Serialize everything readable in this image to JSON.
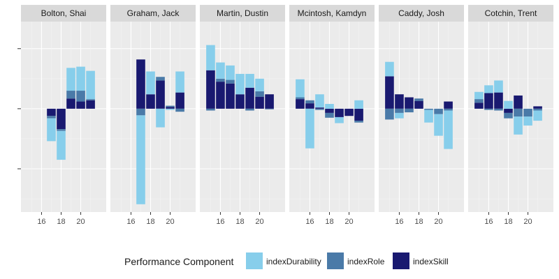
{
  "chart_data": {
    "type": "bar",
    "stacked": true,
    "facet_titles": [
      "Bolton, Shai",
      "Graham, Jack",
      "Martin, Dustin",
      "Mcintosh, Kamdyn",
      "Caddy, Josh",
      "Cotchin, Trent"
    ],
    "x_ticks": [
      16,
      18,
      20
    ],
    "xlim": [
      13.9,
      22.6
    ],
    "ylim": [
      -1.72,
      1.45
    ],
    "y_ticks": [
      -1,
      0,
      1
    ],
    "grid": true,
    "legend": {
      "title": "Performance Component",
      "position": "bottom",
      "entries": [
        "indexDurability",
        "indexRole",
        "indexSkill"
      ]
    },
    "colors": {
      "indexDurability": "#87ceeb",
      "indexRole": "#4a7aa8",
      "indexSkill": "#191970",
      "panel_bg": "#ebebeb",
      "strip_bg": "#d9d9d9",
      "grid_major": "#ffffff",
      "grid_minor": "#f3f3f3"
    },
    "panels": [
      {
        "title": "Bolton, Shai",
        "x": [
          17,
          18,
          19,
          20,
          21
        ],
        "series": [
          {
            "name": "indexSkill",
            "values": [
              -0.12,
              -0.34,
              0.17,
              0.12,
              0.14
            ]
          },
          {
            "name": "indexRole",
            "values": [
              -0.04,
              -0.03,
              0.13,
              0.18,
              0.02
            ]
          },
          {
            "name": "indexDurability",
            "values": [
              -0.38,
              -0.48,
              0.38,
              0.4,
              0.47
            ]
          }
        ]
      },
      {
        "title": "Graham, Jack",
        "x": [
          17,
          18,
          19,
          20,
          21
        ],
        "series": [
          {
            "name": "indexSkill",
            "values": [
              0.82,
              0.24,
              0.47,
              0.03,
              0.27
            ]
          },
          {
            "name": "indexRole",
            "values": [
              -0.11,
              0.0,
              0.06,
              0.02,
              -0.05
            ]
          },
          {
            "name": "indexDurability",
            "values": [
              -1.48,
              0.38,
              -0.31,
              -0.02,
              0.35
            ]
          }
        ]
      },
      {
        "title": "Martin, Dustin",
        "x": [
          15,
          16,
          17,
          18,
          19,
          20,
          21
        ],
        "series": [
          {
            "name": "indexSkill",
            "values": [
              0.64,
              0.45,
              0.42,
              0.24,
              0.35,
              0.2,
              0.24
            ]
          },
          {
            "name": "indexRole",
            "values": [
              -0.03,
              0.05,
              0.06,
              0.0,
              -0.03,
              0.09,
              -0.01
            ]
          },
          {
            "name": "indexDurability",
            "values": [
              0.42,
              0.27,
              0.24,
              0.34,
              0.23,
              0.21,
              0.0
            ]
          }
        ]
      },
      {
        "title": "Mcintosh, Kamdyn",
        "x": [
          15,
          16,
          17,
          18,
          19,
          20,
          21
        ],
        "series": [
          {
            "name": "indexSkill",
            "values": [
              0.16,
              0.09,
              0.02,
              -0.07,
              -0.14,
              -0.12,
              -0.2
            ]
          },
          {
            "name": "indexRole",
            "values": [
              0.03,
              0.05,
              -0.02,
              -0.08,
              0.0,
              0.0,
              -0.03
            ]
          },
          {
            "name": "indexDurability",
            "values": [
              0.3,
              -0.66,
              0.22,
              0.08,
              -0.1,
              0.0,
              0.14
            ]
          }
        ]
      },
      {
        "title": "Caddy, Josh",
        "x": [
          15,
          16,
          17,
          18,
          19,
          20,
          21
        ],
        "series": [
          {
            "name": "indexSkill",
            "values": [
              0.54,
              0.24,
              0.19,
              0.13,
              0.0,
              0.0,
              0.12
            ]
          },
          {
            "name": "indexRole",
            "values": [
              -0.18,
              -0.07,
              -0.06,
              0.04,
              -0.02,
              -0.09,
              -0.03
            ]
          },
          {
            "name": "indexDurability",
            "values": [
              0.24,
              -0.09,
              0.0,
              0.0,
              -0.21,
              -0.36,
              -0.64
            ]
          }
        ]
      },
      {
        "title": "Cotchin, Trent",
        "x": [
          15,
          16,
          17,
          18,
          19,
          20,
          21
        ],
        "series": [
          {
            "name": "indexSkill",
            "values": [
              0.1,
              0.26,
              0.27,
              -0.07,
              0.22,
              0.0,
              0.04
            ]
          },
          {
            "name": "indexRole",
            "values": [
              0.06,
              -0.02,
              -0.03,
              -0.09,
              -0.13,
              -0.13,
              -0.03
            ]
          },
          {
            "name": "indexDurability",
            "values": [
              0.12,
              0.13,
              0.2,
              0.13,
              -0.3,
              -0.15,
              -0.17
            ]
          }
        ]
      }
    ]
  }
}
